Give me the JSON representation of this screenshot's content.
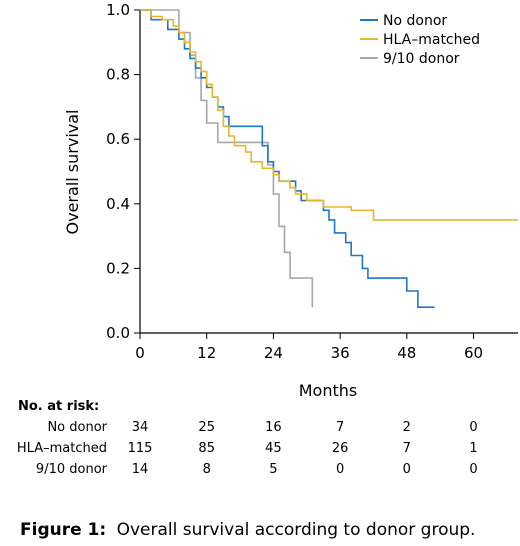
{
  "chart_data": {
    "type": "line",
    "xlabel": "Months",
    "ylabel": "Overall survival",
    "xlim": [
      0,
      68
    ],
    "ylim": [
      0,
      1.0
    ],
    "xticks": [
      0,
      12,
      24,
      36,
      48,
      60
    ],
    "xtick_labels": [
      "0",
      "12",
      "24",
      "36",
      "48",
      "60"
    ],
    "yticks": [
      0,
      0.2,
      0.4,
      0.6,
      0.8,
      1.0
    ],
    "ytick_labels": [
      "0.0",
      "0.2",
      "0.4",
      "0.6",
      "0.8",
      "1.0"
    ],
    "legend_position": "top-right",
    "grid": false,
    "series": [
      {
        "name": "No donor",
        "color": "#1f77c8",
        "step_points": [
          [
            0,
            1.0
          ],
          [
            2,
            0.97
          ],
          [
            5,
            0.94
          ],
          [
            7,
            0.91
          ],
          [
            8,
            0.88
          ],
          [
            9,
            0.85
          ],
          [
            10,
            0.82
          ],
          [
            11,
            0.79
          ],
          [
            12,
            0.76
          ],
          [
            13,
            0.73
          ],
          [
            14,
            0.7
          ],
          [
            15,
            0.67
          ],
          [
            16,
            0.64
          ],
          [
            21,
            0.64
          ],
          [
            22,
            0.58
          ],
          [
            23,
            0.53
          ],
          [
            24,
            0.5
          ],
          [
            25,
            0.47
          ],
          [
            28,
            0.44
          ],
          [
            29,
            0.41
          ],
          [
            33,
            0.38
          ],
          [
            34,
            0.35
          ],
          [
            35,
            0.31
          ],
          [
            37,
            0.28
          ],
          [
            38,
            0.24
          ],
          [
            40,
            0.2
          ],
          [
            41,
            0.17
          ],
          [
            47,
            0.17
          ],
          [
            48,
            0.13
          ],
          [
            50,
            0.08
          ],
          [
            53,
            0.08
          ]
        ]
      },
      {
        "name": "HLA–matched",
        "color": "#e8b62a",
        "step_points": [
          [
            0,
            1.0
          ],
          [
            2,
            0.98
          ],
          [
            4,
            0.97
          ],
          [
            6,
            0.95
          ],
          [
            7,
            0.93
          ],
          [
            8,
            0.9
          ],
          [
            9,
            0.87
          ],
          [
            10,
            0.84
          ],
          [
            11,
            0.81
          ],
          [
            12,
            0.77
          ],
          [
            13,
            0.73
          ],
          [
            14,
            0.69
          ],
          [
            15,
            0.64
          ],
          [
            16,
            0.61
          ],
          [
            17,
            0.58
          ],
          [
            19,
            0.56
          ],
          [
            20,
            0.53
          ],
          [
            22,
            0.51
          ],
          [
            24,
            0.49
          ],
          [
            25,
            0.47
          ],
          [
            27,
            0.45
          ],
          [
            28,
            0.43
          ],
          [
            30,
            0.41
          ],
          [
            33,
            0.39
          ],
          [
            38,
            0.38
          ],
          [
            42,
            0.35
          ],
          [
            68,
            0.35
          ]
        ]
      },
      {
        "name": "9/10 donor",
        "color": "#a7a7a7",
        "step_points": [
          [
            0,
            1.0
          ],
          [
            6,
            1.0
          ],
          [
            7,
            0.93
          ],
          [
            9,
            0.86
          ],
          [
            10,
            0.79
          ],
          [
            11,
            0.72
          ],
          [
            12,
            0.65
          ],
          [
            14,
            0.59
          ],
          [
            22,
            0.59
          ],
          [
            23,
            0.52
          ],
          [
            24,
            0.43
          ],
          [
            25,
            0.33
          ],
          [
            26,
            0.25
          ],
          [
            27,
            0.17
          ],
          [
            31,
            0.17
          ],
          [
            31,
            0.08
          ]
        ]
      }
    ],
    "risk_table": {
      "title": "No. at risk:",
      "rows": [
        {
          "label": "No donor",
          "values": [
            "34",
            "25",
            "16",
            "7",
            "2",
            "0"
          ]
        },
        {
          "label": "HLA–matched",
          "values": [
            "115",
            "85",
            "45",
            "26",
            "7",
            "1"
          ]
        },
        {
          "label": "9/10 donor",
          "values": [
            "14",
            "8",
            "5",
            "0",
            "0",
            "0"
          ]
        }
      ]
    }
  },
  "caption": {
    "label": "Figure 1:",
    "text": "Overall survival according to donor group."
  }
}
